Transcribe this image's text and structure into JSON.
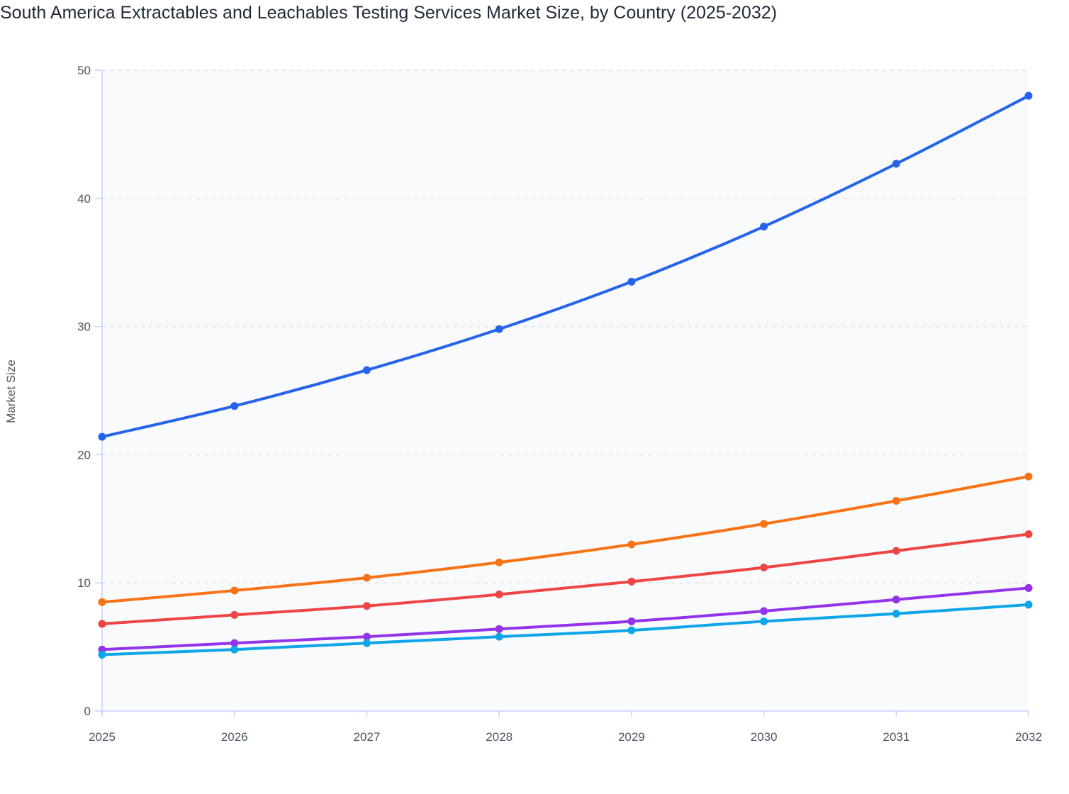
{
  "chart_data": {
    "type": "line",
    "title": "South America Extractables and Leachables Testing Services Market Size, by Country (2025-2032)",
    "xlabel": "",
    "ylabel": "Market Size",
    "x": [
      "2025",
      "2026",
      "2027",
      "2028",
      "2029",
      "2030",
      "2031",
      "2032"
    ],
    "ylim": [
      0,
      50
    ],
    "yticks": [
      0,
      10,
      20,
      30,
      40,
      50
    ],
    "grid": true,
    "legend": "none",
    "series": [
      {
        "color": "#2563eb",
        "values": [
          21.4,
          23.8,
          26.6,
          29.8,
          33.5,
          37.8,
          42.7,
          48.0
        ]
      },
      {
        "color": "#f97316",
        "values": [
          8.5,
          9.4,
          10.4,
          11.6,
          13.0,
          14.6,
          16.4,
          18.3
        ]
      },
      {
        "color": "#ef4444",
        "values": [
          6.8,
          7.5,
          8.2,
          9.1,
          10.1,
          11.2,
          12.5,
          13.8
        ]
      },
      {
        "color": "#9333ea",
        "values": [
          4.8,
          5.3,
          5.8,
          6.4,
          7.0,
          7.8,
          8.7,
          9.6
        ]
      },
      {
        "color": "#0ea5e9",
        "values": [
          4.4,
          4.8,
          5.3,
          5.8,
          6.3,
          7.0,
          7.6,
          8.3
        ]
      }
    ]
  }
}
